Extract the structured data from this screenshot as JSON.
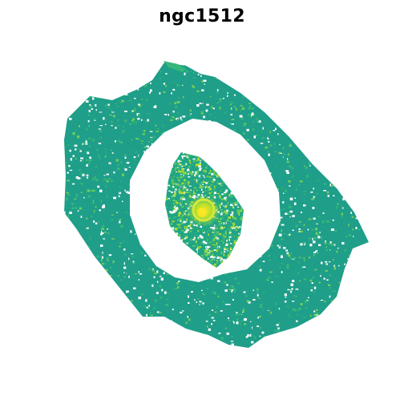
{
  "figure": {
    "title": "ngc1512"
  },
  "palette": {
    "background": "#ffffff",
    "ring_dark": "#1f9e89",
    "ring_mid": "#35b779",
    "ring_light": "#6ece58",
    "core_bright": "#b5de2b",
    "nucleus": "#fde725"
  }
}
